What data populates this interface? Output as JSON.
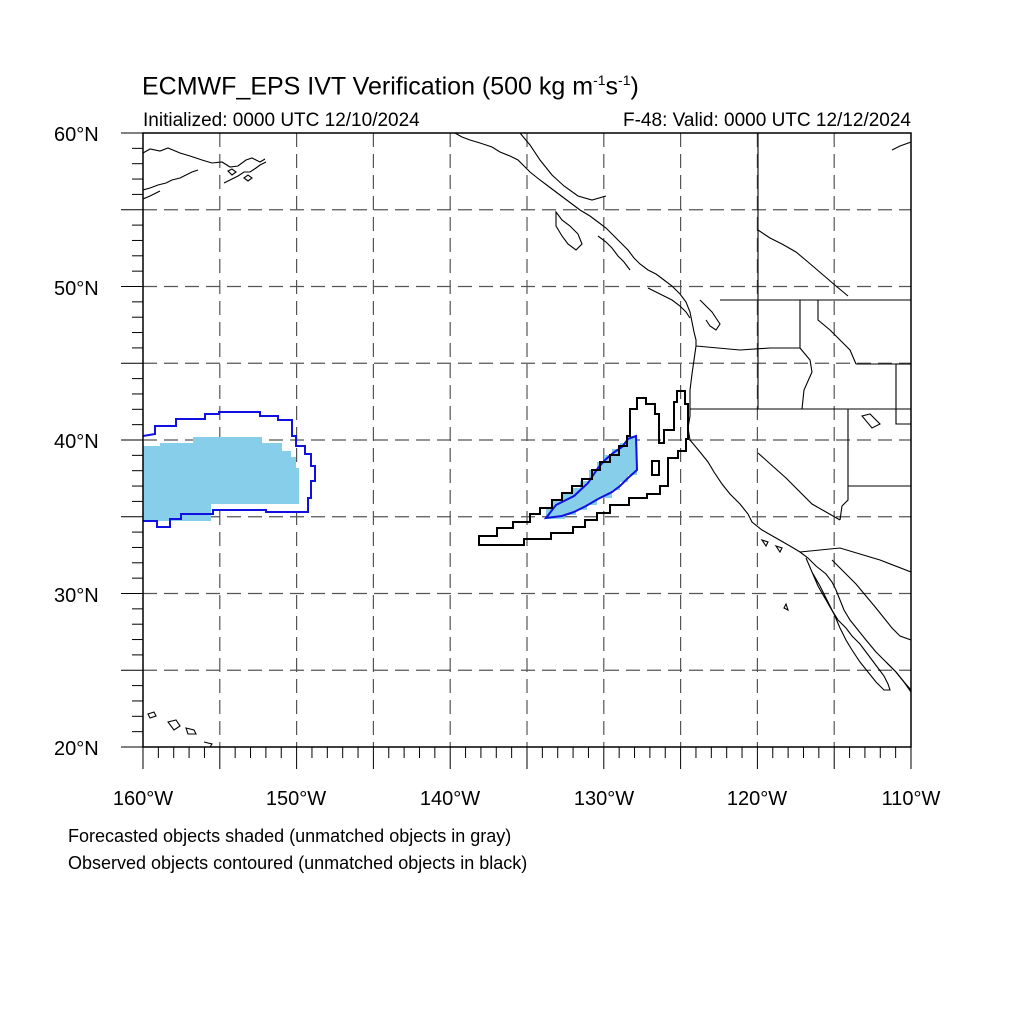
{
  "title": {
    "main": "ECMWF_EPS IVT Verification (500 kg m",
    "exp1": "-1",
    "mid": "s",
    "exp2": "-1",
    "end": ")"
  },
  "subtitle": {
    "initialized": "Initialized: 0000 UTC 12/10/2024",
    "valid": "F-48: Valid: 0000 UTC 12/12/2024"
  },
  "map": {
    "lat_labels": [
      "60°N",
      "50°N",
      "40°N",
      "30°N",
      "20°N"
    ],
    "lon_labels": [
      "160°W",
      "150°W",
      "140°W",
      "130°W",
      "120°W",
      "110°W"
    ],
    "extent": {
      "lon_min": -160,
      "lon_max": -110,
      "lat_min": 20,
      "lat_max": 60
    },
    "grid_spacing_deg": 5,
    "grid_style": "dashed"
  },
  "colors": {
    "forecast_fill": "#87ceeb",
    "observed_matched": "#1010e0",
    "observed_unmatched": "#000000"
  },
  "notes": {
    "line1": "Forecasted objects shaded (unmatched objects in gray)",
    "line2": "Observed objects contoured (unmatched objects in black)"
  }
}
